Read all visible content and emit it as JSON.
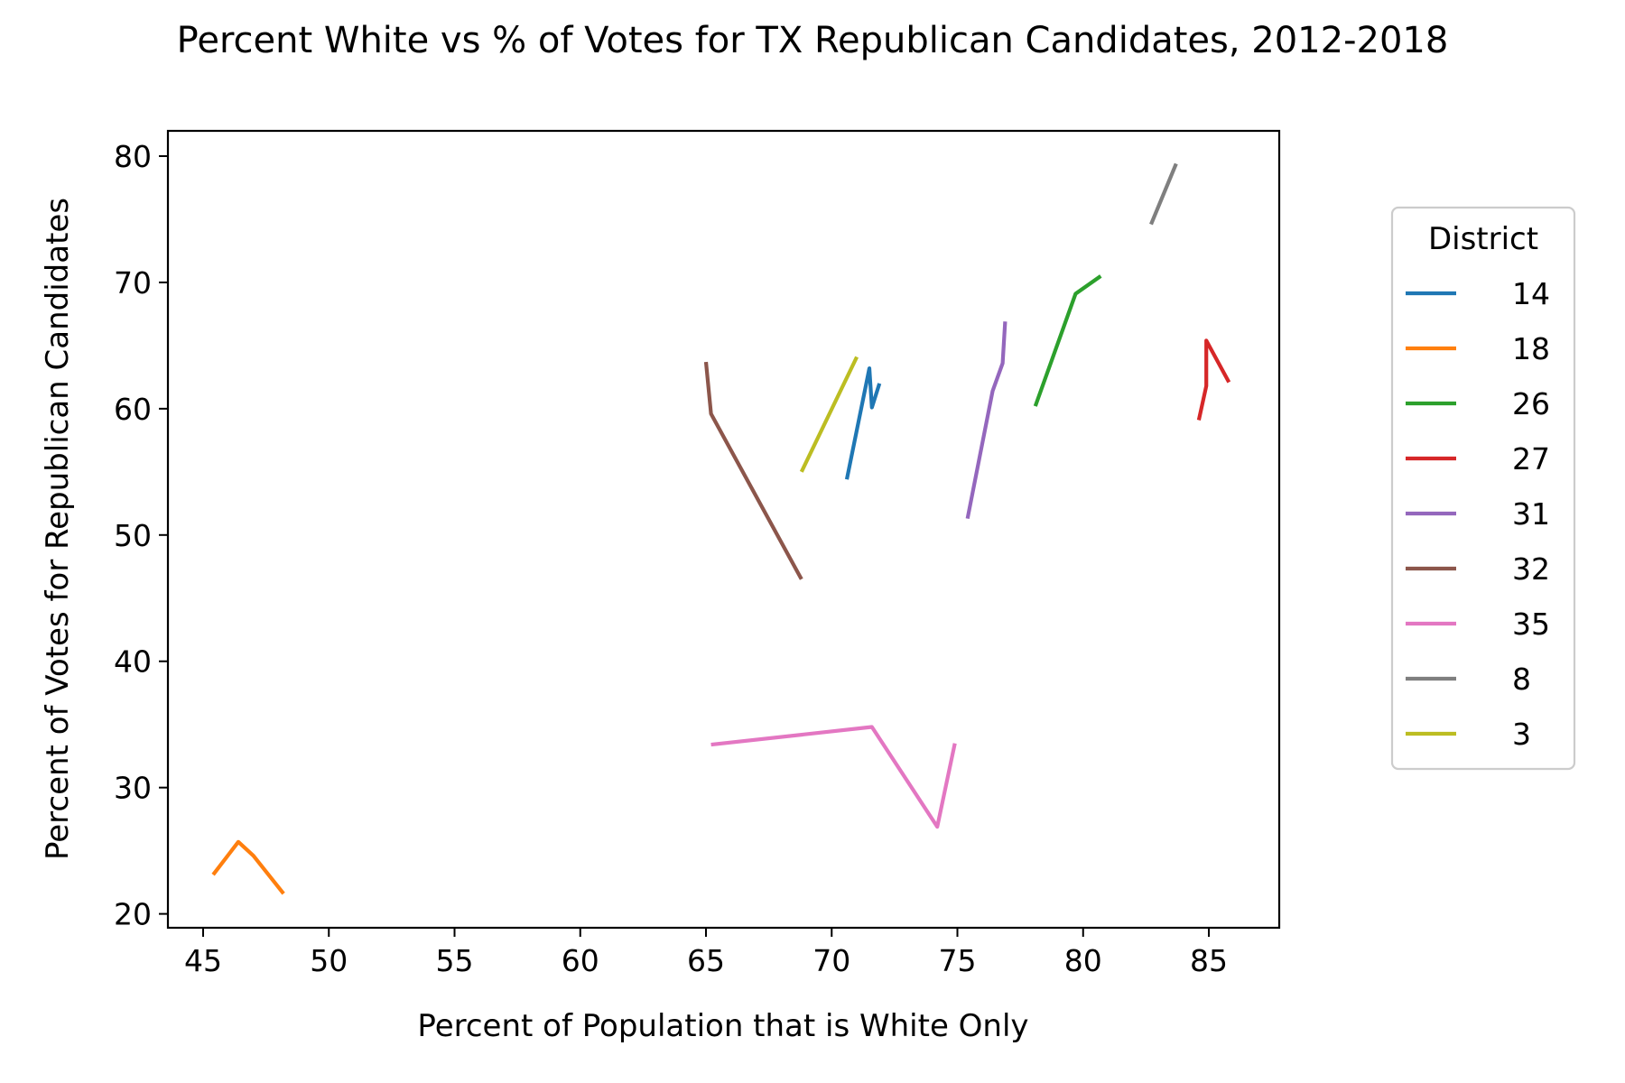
{
  "chart_data": {
    "type": "line",
    "title": "Percent White vs % of Votes for TX Republican Candidates, 2012-2018",
    "xlabel": "Percent of Population that is White Only",
    "ylabel": "Percent of Votes for Republican Candidates",
    "xlim": [
      43.6,
      87.8
    ],
    "ylim": [
      18.9,
      82.0
    ],
    "xticks": [
      45,
      50,
      55,
      60,
      65,
      70,
      75,
      80,
      85
    ],
    "yticks": [
      20,
      30,
      40,
      50,
      60,
      70,
      80
    ],
    "grid": false,
    "legend": {
      "title": "District",
      "placement": "right, outside plot"
    },
    "series": [
      {
        "name": "14",
        "color": "#1f77b4",
        "points": [
          [
            70.6,
            54.4
          ],
          [
            71.5,
            63.2
          ],
          [
            71.6,
            60.1
          ],
          [
            71.9,
            62.0
          ]
        ]
      },
      {
        "name": "18",
        "color": "#ff7f0e",
        "points": [
          [
            45.4,
            23.1
          ],
          [
            46.4,
            25.7
          ],
          [
            47.0,
            24.6
          ],
          [
            48.2,
            21.6
          ]
        ]
      },
      {
        "name": "26",
        "color": "#2ca02c",
        "points": [
          [
            78.1,
            60.2
          ],
          [
            79.7,
            69.1
          ],
          [
            80.7,
            70.5
          ]
        ]
      },
      {
        "name": "27",
        "color": "#d62728",
        "points": [
          [
            84.6,
            59.1
          ],
          [
            84.9,
            61.8
          ],
          [
            84.9,
            65.4
          ],
          [
            85.8,
            62.1
          ]
        ]
      },
      {
        "name": "31",
        "color": "#9467bd",
        "points": [
          [
            75.4,
            51.3
          ],
          [
            76.4,
            61.4
          ],
          [
            76.8,
            63.6
          ],
          [
            76.9,
            66.9
          ]
        ]
      },
      {
        "name": "32",
        "color": "#8c564b",
        "points": [
          [
            65.0,
            63.7
          ],
          [
            65.2,
            59.6
          ],
          [
            68.8,
            46.5
          ]
        ]
      },
      {
        "name": "35",
        "color": "#e377c2",
        "points": [
          [
            65.2,
            33.4
          ],
          [
            71.6,
            34.8
          ],
          [
            74.2,
            26.9
          ],
          [
            74.9,
            33.5
          ]
        ]
      },
      {
        "name": "8",
        "color": "#7f7f7f",
        "points": [
          [
            82.7,
            74.6
          ],
          [
            83.7,
            79.4
          ]
        ]
      },
      {
        "name": "3",
        "color": "#bcbd22",
        "points": [
          [
            68.8,
            55.0
          ],
          [
            71.0,
            64.1
          ]
        ]
      }
    ]
  }
}
